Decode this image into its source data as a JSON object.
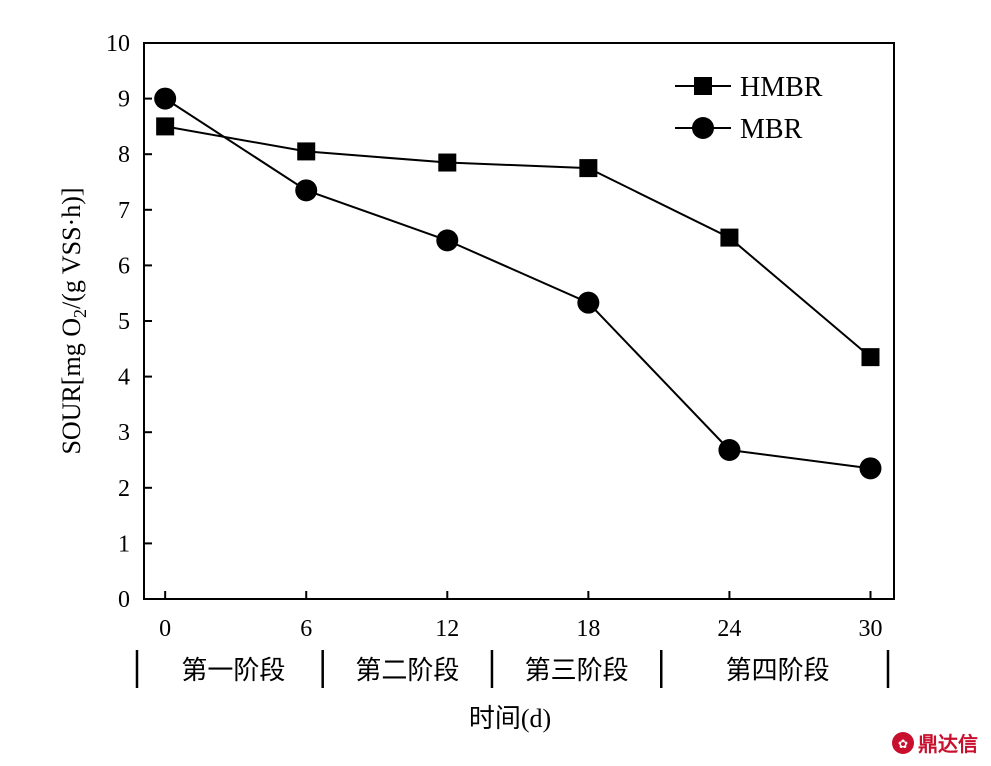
{
  "chart_data": {
    "type": "line",
    "xlabel": "时间(d)",
    "ylabel_prefix": "SOUR[mg O",
    "ylabel_sub": "2",
    "ylabel_suffix": "/(g VSS·h)]",
    "x": [
      0,
      6,
      12,
      18,
      24,
      30
    ],
    "xlim": [
      -0.9,
      31
    ],
    "ylim": [
      0,
      10
    ],
    "yticks": [
      0,
      1,
      2,
      3,
      4,
      5,
      6,
      7,
      8,
      9,
      10
    ],
    "grid": false,
    "legend_position": "top-right",
    "series": [
      {
        "name": "HMBR",
        "marker": "square",
        "color": "#000000",
        "values": [
          8.5,
          8.05,
          7.85,
          7.75,
          6.5,
          4.35
        ]
      },
      {
        "name": "MBR",
        "marker": "circle",
        "color": "#000000",
        "values": [
          9.0,
          7.35,
          6.45,
          5.33,
          2.68,
          2.35
        ]
      }
    ],
    "stages": [
      {
        "label": "第一阶段",
        "from": -0.9,
        "to": 6.7
      },
      {
        "label": "第二阶段",
        "from": 6.7,
        "to": 13.9
      },
      {
        "label": "第三阶段",
        "from": 13.9,
        "to": 21.1
      },
      {
        "label": "第四阶段",
        "from": 21.1,
        "to": 31
      }
    ]
  },
  "watermark": {
    "text": "鼎达信",
    "color": "#c8102e"
  }
}
